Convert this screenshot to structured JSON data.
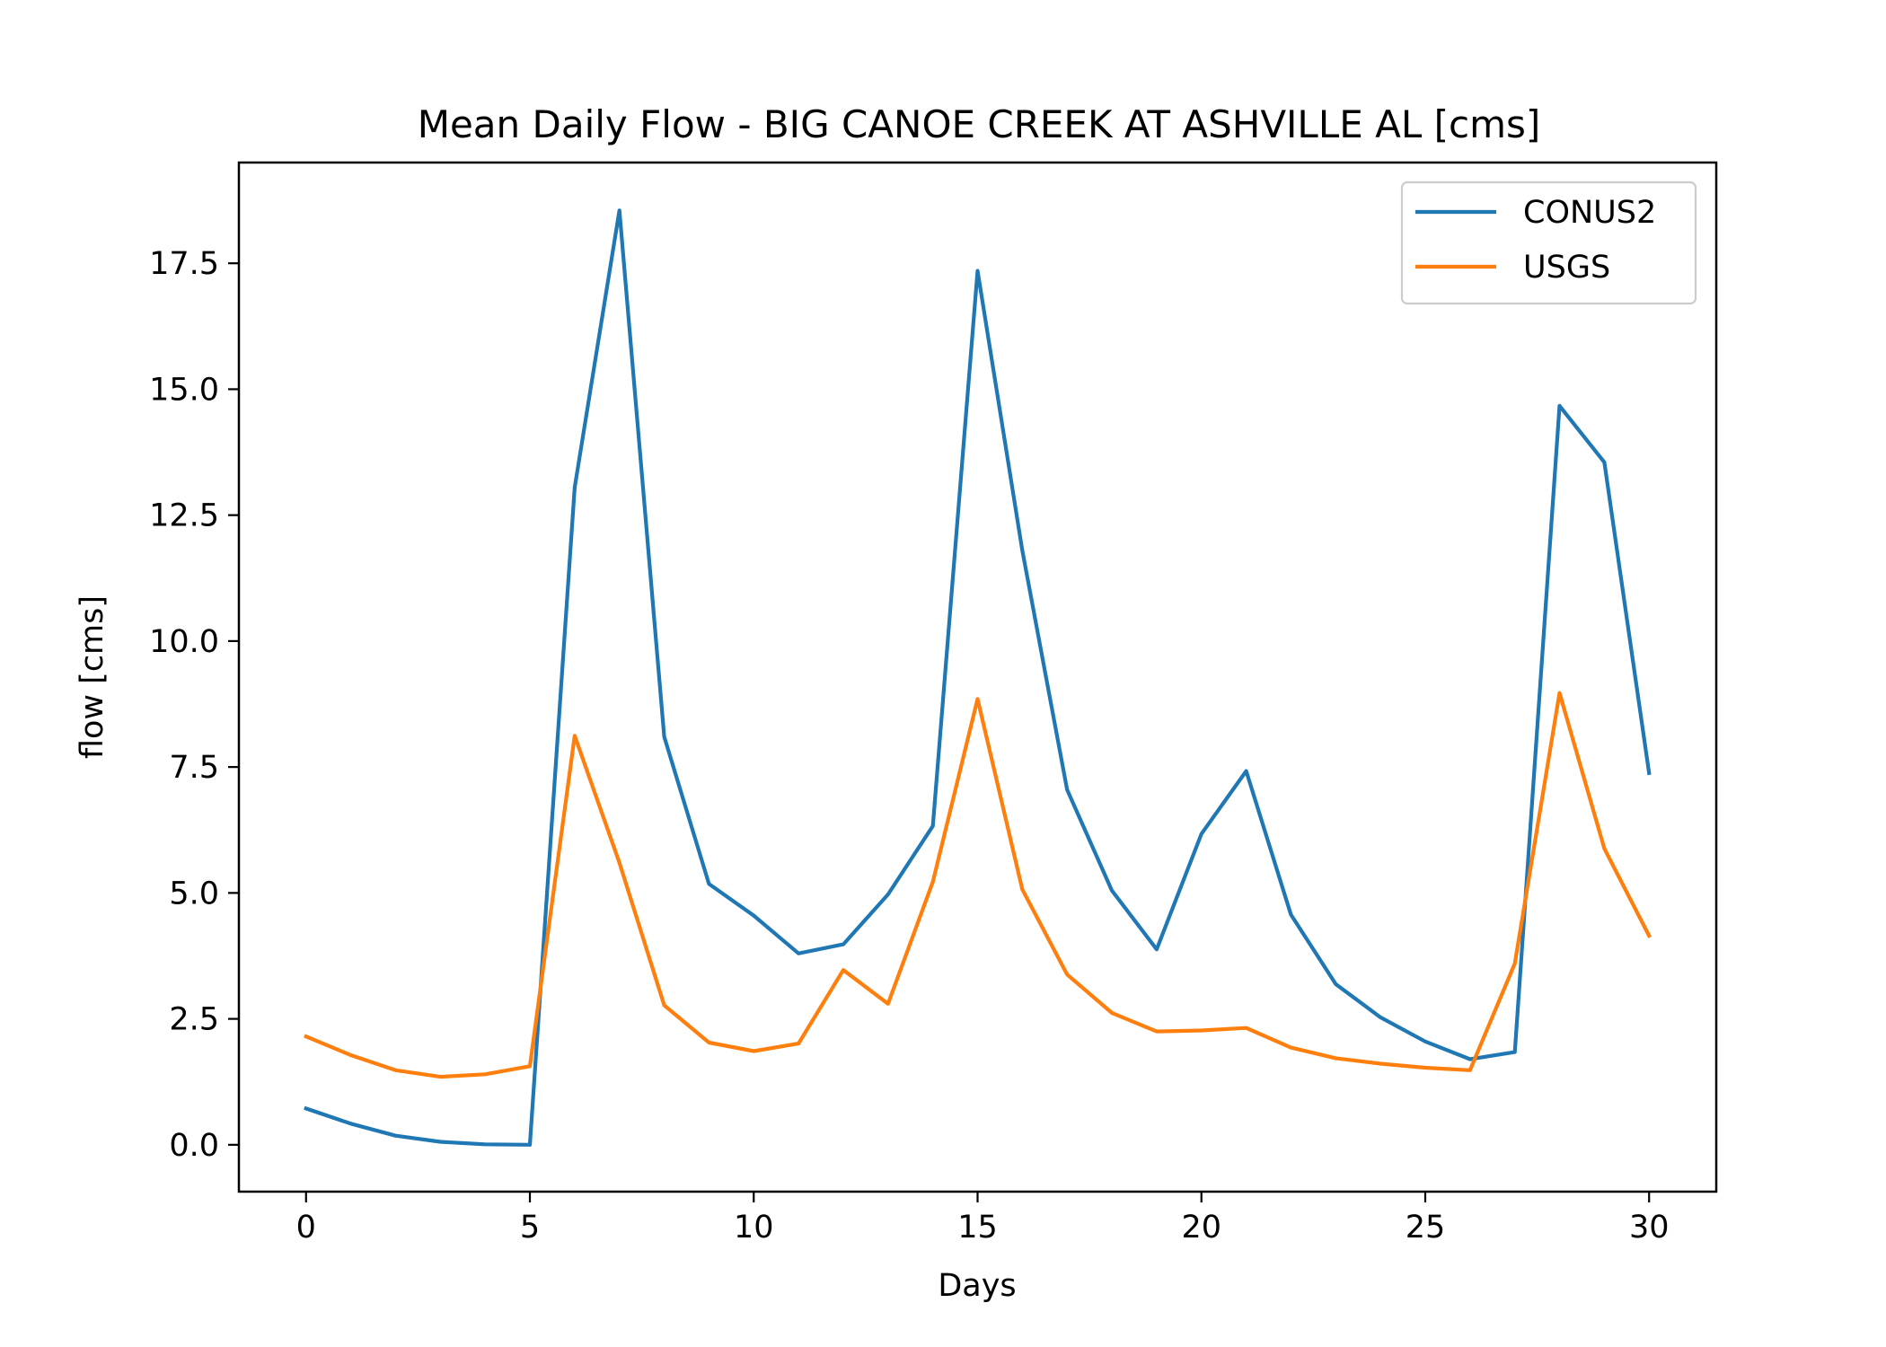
{
  "chart_data": {
    "type": "line",
    "title": "Mean Daily Flow - BIG CANOE CREEK AT ASHVILLE AL [cms]",
    "xlabel": "Days",
    "ylabel": "flow [cms]",
    "xlim": [
      -1.5,
      31.5
    ],
    "ylim": [
      -0.93,
      19.5
    ],
    "xticks": [
      0,
      5,
      10,
      15,
      20,
      25,
      30
    ],
    "xtick_labels": [
      "0",
      "5",
      "10",
      "15",
      "20",
      "25",
      "30"
    ],
    "yticks": [
      0,
      2.5,
      5,
      7.5,
      10,
      12.5,
      15,
      17.5
    ],
    "ytick_labels": [
      "0.0",
      "2.5",
      "5.0",
      "7.5",
      "10.0",
      "12.5",
      "15.0",
      "17.5"
    ],
    "grid": false,
    "legend_position": "upper-right",
    "x": [
      0,
      1,
      2,
      3,
      4,
      5,
      6,
      7,
      8,
      9,
      10,
      11,
      12,
      13,
      14,
      15,
      16,
      17,
      18,
      19,
      20,
      21,
      22,
      23,
      24,
      25,
      26,
      27,
      28,
      29,
      30
    ],
    "series": [
      {
        "name": "CONUS2",
        "color": "#1f77b4",
        "values": [
          0.72,
          0.42,
          0.18,
          0.06,
          0.01,
          0.0,
          13.05,
          18.55,
          8.1,
          5.18,
          4.55,
          3.8,
          3.98,
          4.97,
          6.33,
          17.35,
          11.8,
          7.05,
          5.05,
          3.88,
          6.17,
          7.42,
          4.57,
          3.19,
          2.53,
          2.05,
          1.7,
          1.84,
          14.67,
          13.55,
          7.38
        ]
      },
      {
        "name": "USGS",
        "color": "#ff7f0e",
        "values": [
          2.15,
          1.78,
          1.48,
          1.35,
          1.4,
          1.56,
          8.12,
          5.6,
          2.77,
          2.03,
          1.86,
          2.01,
          3.47,
          2.8,
          5.22,
          8.85,
          5.07,
          3.38,
          2.62,
          2.25,
          2.27,
          2.32,
          1.93,
          1.72,
          1.61,
          1.53,
          1.48,
          3.6,
          8.97,
          5.88,
          4.15
        ]
      }
    ]
  }
}
